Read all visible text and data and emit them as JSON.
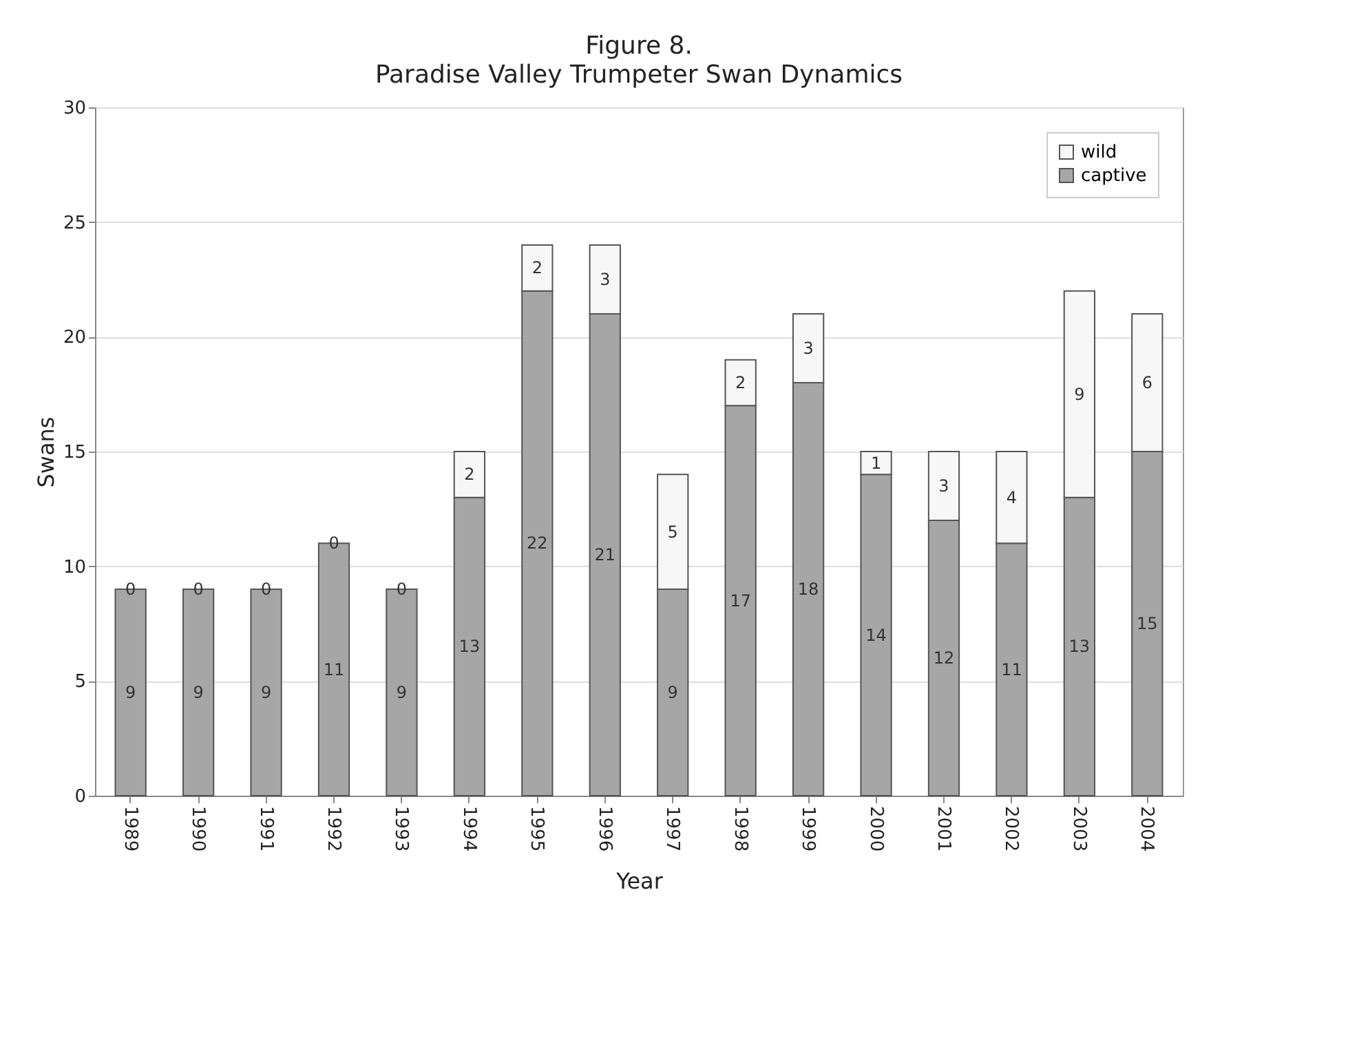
{
  "chart_data": {
    "type": "bar",
    "title": "Figure 8.",
    "subtitle": "Paradise Valley Trumpeter Swan Dynamics",
    "xlabel": "Year",
    "ylabel": "Swans",
    "categories": [
      "1989",
      "1990",
      "1991",
      "1992",
      "1993",
      "1994",
      "1995",
      "1996",
      "1997",
      "1998",
      "1999",
      "2000",
      "2001",
      "2002",
      "2003",
      "2004"
    ],
    "series": [
      {
        "name": "captive",
        "color": "#a6a6a6",
        "values": [
          9,
          9,
          9,
          11,
          9,
          13,
          22,
          21,
          9,
          17,
          18,
          14,
          12,
          11,
          13,
          15
        ]
      },
      {
        "name": "wild",
        "color": "#f7f7f7",
        "values": [
          0,
          0,
          0,
          0,
          0,
          2,
          2,
          3,
          5,
          2,
          3,
          1,
          3,
          4,
          9,
          6
        ]
      }
    ],
    "stacked": true,
    "ylim": [
      0,
      30
    ],
    "yticks": [
      0,
      5,
      10,
      15,
      20,
      25,
      30
    ],
    "grid": "y",
    "legend": "top right",
    "data_labels": true
  }
}
